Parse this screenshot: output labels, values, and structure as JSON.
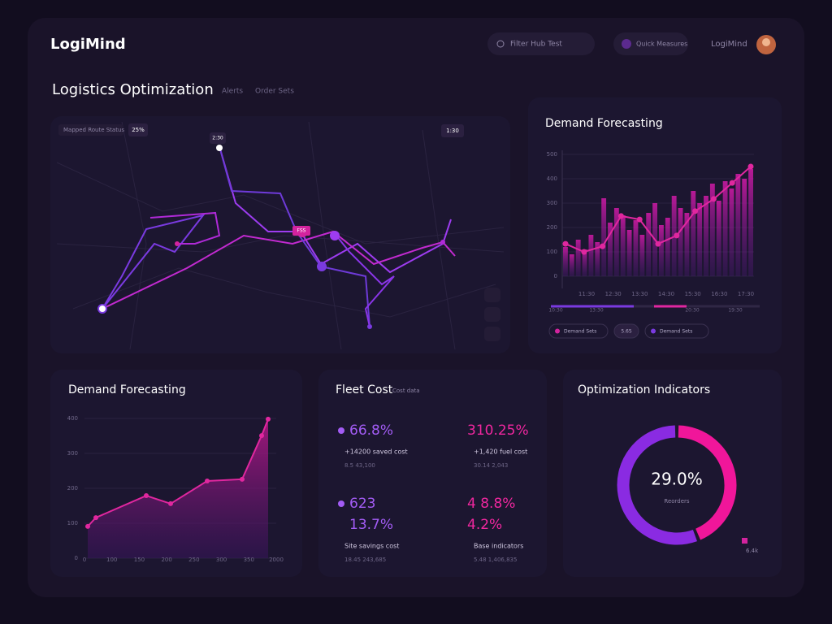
{
  "header": {
    "brand": "LogiMind",
    "search": "Filter Hub Test",
    "quick": "Quick Measures",
    "user": "LogiMind"
  },
  "page": {
    "title": "Logistics Optimization",
    "tabs": [
      "Alerts",
      "Order Sets"
    ]
  },
  "map": {
    "label": "Mapped Route Status",
    "badge": "25%",
    "chips": [
      "2:30",
      "1:30"
    ],
    "tag": "FSS"
  },
  "forecast_top": {
    "title": "Demand Forecasting",
    "ylim": [
      0,
      500
    ],
    "yticks": [
      500,
      400,
      300,
      200,
      100,
      0
    ],
    "xticks": [
      "11:30",
      "12:30",
      "13:30",
      "14:30",
      "15:30",
      "16:30",
      "17:30"
    ],
    "line": [
      133,
      100,
      123,
      247,
      233,
      133,
      167,
      267,
      317,
      383,
      450
    ],
    "bars": [
      120,
      90,
      150,
      110,
      170,
      140,
      320,
      220,
      280,
      250,
      190,
      230,
      170,
      260,
      300,
      210,
      240,
      330,
      280,
      260,
      350,
      300,
      330,
      380,
      310,
      390,
      360,
      420,
      400,
      440
    ],
    "timeline": [
      "10:30",
      "13:30",
      "20:30",
      "19:30"
    ],
    "legend": [
      "Demand Sets",
      "5.65",
      "Demand Sets"
    ]
  },
  "forecast_bottom": {
    "title": "Demand Forecasting",
    "ylim": [
      0,
      400
    ],
    "yticks": [
      400,
      300,
      200,
      100,
      0
    ],
    "xticks": [
      "0",
      "100",
      "150",
      "200",
      "250",
      "300",
      "350",
      "2000"
    ],
    "values": [
      91,
      116,
      179,
      156,
      221,
      226,
      351,
      398
    ]
  },
  "fleet_cost": {
    "title": "Fleet Cost",
    "subtitle": "Cost data",
    "metrics": [
      {
        "values": [
          "66.8%"
        ],
        "label": "+14200 saved cost",
        "sub": "8.5 43,100"
      },
      {
        "values": [
          "310.25%"
        ],
        "label": "+1,420 fuel cost",
        "sub": "30.14 2,043"
      },
      {
        "values": [
          "623",
          "13.7%"
        ],
        "label": "Site savings cost",
        "sub": "18.45 243,685"
      },
      {
        "values": [
          "4 8.8%",
          "4.2%"
        ],
        "label": "Base indicators",
        "sub": "5.48 1,406,835"
      }
    ]
  },
  "indicators": {
    "title": "Optimization Indicators",
    "center": "29.0%",
    "caption": "Reorders",
    "segments": [
      44,
      56
    ],
    "legend": "6.4k"
  }
}
